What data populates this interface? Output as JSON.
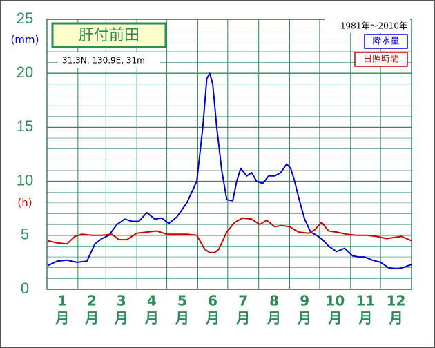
{
  "chart_data": {
    "type": "line",
    "title": "肝付前田",
    "subtitle": "31.3N,  130.9E,  31m",
    "period": "1981年〜2010年",
    "y_unit_left": "(mm)",
    "y_unit_right": "(h)",
    "categories": [
      "1",
      "2",
      "3",
      "4",
      "5",
      "6",
      "7",
      "8",
      "9",
      "10",
      "11",
      "12"
    ],
    "month_unit": "月",
    "xlim": [
      0,
      365
    ],
    "xticks": [
      0,
      31,
      59,
      90,
      120,
      151,
      181,
      212,
      243,
      273,
      304,
      334,
      365
    ],
    "ylim": [
      0,
      25
    ],
    "yticks": [
      0,
      5,
      10,
      15,
      20,
      25
    ],
    "grid": true,
    "legend": "upper right",
    "series": [
      {
        "name": "降水量",
        "color": "#0000cc",
        "x": [
          1,
          10,
          20,
          30,
          40,
          48,
          55,
          62,
          70,
          78,
          85,
          92,
          100,
          108,
          115,
          122,
          130,
          140,
          150,
          156,
          160,
          163,
          166,
          170,
          175,
          180,
          186,
          190,
          194,
          200,
          205,
          210,
          216,
          222,
          228,
          234,
          240,
          244,
          248,
          252,
          258,
          264,
          270,
          276,
          282,
          290,
          298,
          306,
          312,
          318,
          326,
          334,
          342,
          350,
          356,
          365
        ],
        "values": [
          2.2,
          2.6,
          2.7,
          2.5,
          2.6,
          4.2,
          4.7,
          5.0,
          6.0,
          6.5,
          6.3,
          6.3,
          7.1,
          6.5,
          6.6,
          6.1,
          6.7,
          8.0,
          10.0,
          15.0,
          19.5,
          20.0,
          19.0,
          15.0,
          11.0,
          8.3,
          8.2,
          10.0,
          11.2,
          10.5,
          10.8,
          10.0,
          9.8,
          10.5,
          10.5,
          10.8,
          11.6,
          11.2,
          10.0,
          8.5,
          6.5,
          5.3,
          5.0,
          4.6,
          4.0,
          3.5,
          3.8,
          3.1,
          3.0,
          3.0,
          2.7,
          2.5,
          2.0,
          1.9,
          2.0,
          2.3
        ]
      },
      {
        "name": "日照時間",
        "color": "#cc0000",
        "x": [
          1,
          10,
          20,
          28,
          35,
          45,
          55,
          65,
          72,
          80,
          90,
          100,
          110,
          120,
          130,
          140,
          150,
          158,
          163,
          168,
          172,
          180,
          188,
          196,
          205,
          213,
          220,
          228,
          235,
          243,
          252,
          262,
          268,
          275,
          282,
          290,
          300,
          310,
          320,
          330,
          340,
          348,
          355,
          365
        ],
        "values": [
          4.5,
          4.3,
          4.2,
          4.9,
          5.1,
          5.0,
          5.0,
          5.1,
          4.6,
          4.6,
          5.2,
          5.3,
          5.4,
          5.1,
          5.1,
          5.1,
          5.0,
          3.7,
          3.4,
          3.4,
          3.7,
          5.3,
          6.2,
          6.6,
          6.5,
          6.0,
          6.4,
          5.8,
          5.9,
          5.8,
          5.3,
          5.2,
          5.5,
          6.2,
          5.4,
          5.3,
          5.1,
          5.0,
          5.0,
          4.9,
          4.7,
          4.8,
          4.9,
          4.5
        ]
      }
    ]
  }
}
